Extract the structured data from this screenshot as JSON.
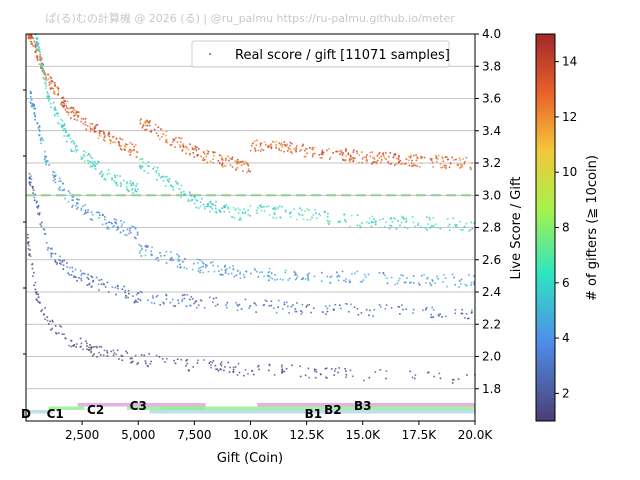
{
  "header": {
    "watermark": "ぱ(る)むの計算機 @ 2026 (る) | @ru_palmu  https://ru-palmu.github.io/meter"
  },
  "chart_data": {
    "type": "scatter",
    "xlabel": "Gift (Coin)",
    "ylabel": "Live Score / Gift",
    "xlim": [
      0,
      20000
    ],
    "ylim": [
      1.6,
      4.0
    ],
    "xticks": [
      {
        "v": 2500,
        "label": "2,500"
      },
      {
        "v": 5000,
        "label": "5,000"
      },
      {
        "v": 7500,
        "label": "7,500"
      },
      {
        "v": 10000,
        "label": "10.0K"
      },
      {
        "v": 12500,
        "label": "12.5K"
      },
      {
        "v": 15000,
        "label": "15.0K"
      },
      {
        "v": 17500,
        "label": "17.5K"
      },
      {
        "v": 20000,
        "label": "20.0K"
      }
    ],
    "yticks": [
      {
        "v": 1.8,
        "label": "1.8"
      },
      {
        "v": 2.0,
        "label": "2.0"
      },
      {
        "v": 2.2,
        "label": "2.2"
      },
      {
        "v": 2.4,
        "label": "2.4"
      },
      {
        "v": 2.6,
        "label": "2.6"
      },
      {
        "v": 2.8,
        "label": "2.8"
      },
      {
        "v": 3.0,
        "label": "3.0"
      },
      {
        "v": 3.2,
        "label": "3.2"
      },
      {
        "v": 3.4,
        "label": "3.4"
      },
      {
        "v": 3.6,
        "label": "3.6"
      },
      {
        "v": 3.8,
        "label": "3.8"
      },
      {
        "v": 4.0,
        "label": "4.0"
      }
    ],
    "grid": "horizontal",
    "reference_line": {
      "y": 3.0,
      "style": "dashed",
      "color": "#8fd18f"
    },
    "legend": {
      "position": "top-right",
      "label": "Real score / gift [11071 samples]"
    },
    "colorbar": {
      "label": "# of gifters (≧ 10coin)",
      "range": [
        1,
        15
      ],
      "ticks": [
        2,
        4,
        6,
        8,
        10,
        12,
        14
      ],
      "colormap": "turbo"
    },
    "bands": [
      {
        "gifters": 13,
        "count": 700,
        "points": [
          [
            100,
            4.0
          ],
          [
            1000,
            3.7
          ],
          [
            2000,
            3.5
          ],
          [
            3500,
            3.35
          ],
          [
            4990,
            3.25
          ],
          [
            5010,
            3.45
          ],
          [
            7500,
            3.25
          ],
          [
            9990,
            3.15
          ],
          [
            10010,
            3.3
          ],
          [
            15000,
            3.22
          ],
          [
            20000,
            3.18
          ]
        ]
      },
      {
        "gifters": 6,
        "count": 500,
        "points": [
          [
            400,
            4.0
          ],
          [
            1000,
            3.6
          ],
          [
            2000,
            3.3
          ],
          [
            3500,
            3.12
          ],
          [
            4990,
            3.02
          ],
          [
            5010,
            3.2
          ],
          [
            7500,
            2.95
          ],
          [
            9990,
            2.85
          ],
          [
            10010,
            2.9
          ],
          [
            15000,
            2.82
          ],
          [
            20000,
            2.8
          ]
        ]
      },
      {
        "gifters": 4,
        "count": 400,
        "points": [
          [
            200,
            3.6
          ],
          [
            1000,
            3.15
          ],
          [
            2000,
            2.95
          ],
          [
            3500,
            2.82
          ],
          [
            4990,
            2.75
          ],
          [
            5010,
            2.65
          ],
          [
            7500,
            2.55
          ],
          [
            10000,
            2.5
          ],
          [
            15000,
            2.47
          ],
          [
            20000,
            2.45
          ]
        ]
      },
      {
        "gifters": 2.5,
        "count": 300,
        "points": [
          [
            150,
            3.1
          ],
          [
            1000,
            2.65
          ],
          [
            2000,
            2.5
          ],
          [
            3500,
            2.42
          ],
          [
            5000,
            2.35
          ],
          [
            10000,
            2.3
          ],
          [
            15000,
            2.27
          ],
          [
            20000,
            2.25
          ]
        ]
      },
      {
        "gifters": 1.3,
        "count": 250,
        "points": [
          [
            80,
            2.7
          ],
          [
            500,
            2.35
          ],
          [
            1000,
            2.2
          ],
          [
            2000,
            2.08
          ],
          [
            3500,
            2.0
          ],
          [
            6000,
            1.95
          ],
          [
            10000,
            1.9
          ],
          [
            20000,
            1.85
          ]
        ]
      }
    ],
    "ranges": [
      {
        "label": "D",
        "from": 0,
        "to": 1200,
        "color": "#add8e6",
        "row": 0
      },
      {
        "label": "C1",
        "from": 1000,
        "to": 2600,
        "color": "#90ee90",
        "row": 1
      },
      {
        "label": "C2",
        "from": 2300,
        "to": 8000,
        "color": "#dda0dd",
        "row": 2
      },
      {
        "label": "C3",
        "from": 4500,
        "to": 8000,
        "color": "#90ee90",
        "row": 1
      },
      {
        "label": "B1",
        "from": 5500,
        "to": 20000,
        "color": "#add8e6",
        "row": 0
      },
      {
        "label": "B2",
        "from": 6000,
        "to": 20000,
        "color": "#90ee90",
        "row": 1
      },
      {
        "label": "B3",
        "from": 10300,
        "to": 20000,
        "color": "#dda0dd",
        "row": 2
      }
    ],
    "range_labels": [
      {
        "label": "D",
        "x": 0,
        "row": 0
      },
      {
        "label": "C1",
        "x": 1300,
        "row": 0
      },
      {
        "label": "C2",
        "x": 3100,
        "row": 1
      },
      {
        "label": "C3",
        "x": 5000,
        "row": 2
      },
      {
        "label": "B1",
        "x": 12800,
        "row": 0
      },
      {
        "label": "B2",
        "x": 13100,
        "row": 1
      },
      {
        "label": "B3",
        "x": 15000,
        "row": 2
      }
    ]
  }
}
